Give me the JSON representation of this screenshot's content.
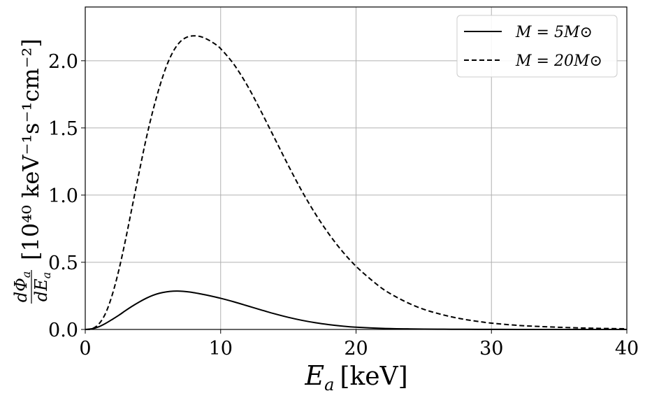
{
  "chart_data": {
    "type": "line",
    "xlabel_var": "E",
    "xlabel_sub": "a",
    "xlabel_unit": "[keV]",
    "ylabel_num": "dΦ",
    "ylabel_num_sub": "a",
    "ylabel_den": "dE",
    "ylabel_den_sub": "a",
    "ylabel_unit": "[10⁴⁰ keV⁻¹s⁻¹cm⁻²]",
    "xlim": [
      0,
      40
    ],
    "ylim": [
      0,
      2.4
    ],
    "xticks": [
      0,
      10,
      20,
      30,
      40
    ],
    "xtick_labels": [
      "0",
      "10",
      "20",
      "30",
      "40"
    ],
    "yticks": [
      0,
      0.5,
      1.0,
      1.5,
      2.0
    ],
    "ytick_labels": [
      "0.0",
      "0.5",
      "1.0",
      "1.5",
      "2.0"
    ],
    "grid": true,
    "legend_position": "top-right",
    "series": [
      {
        "name": "M = 5M⊙",
        "style": "solid",
        "color": "#000000",
        "x": [
          0,
          0.5,
          1,
          1.5,
          2,
          2.5,
          3,
          3.5,
          4,
          4.5,
          5,
          5.5,
          6,
          6.5,
          7,
          7.5,
          8,
          8.5,
          9,
          10,
          11,
          12,
          13,
          14,
          15,
          16,
          17,
          18,
          19,
          20,
          22,
          24,
          26,
          28,
          30,
          32,
          35,
          40
        ],
        "y": [
          0,
          0.005,
          0.02,
          0.045,
          0.075,
          0.107,
          0.142,
          0.175,
          0.205,
          0.232,
          0.254,
          0.27,
          0.28,
          0.285,
          0.285,
          0.281,
          0.274,
          0.265,
          0.255,
          0.232,
          0.205,
          0.175,
          0.145,
          0.116,
          0.09,
          0.068,
          0.05,
          0.036,
          0.025,
          0.017,
          0.008,
          0.004,
          0.002,
          0.001,
          0.0005,
          0.0003,
          0.0001,
          0
        ]
      },
      {
        "name": "M = 20M⊙",
        "style": "dashed",
        "color": "#000000",
        "x": [
          0,
          0.5,
          1,
          1.5,
          2,
          2.5,
          3,
          3.5,
          4,
          4.5,
          5,
          5.5,
          6,
          6.5,
          7,
          7.5,
          8,
          8.5,
          9,
          9.5,
          10,
          11,
          12,
          13,
          14,
          15,
          16,
          17,
          18,
          19,
          20,
          21,
          22,
          23,
          24,
          25,
          26,
          27,
          28,
          29,
          30,
          32,
          34,
          36,
          38,
          40
        ],
        "y": [
          0,
          0.005,
          0.04,
          0.12,
          0.26,
          0.45,
          0.68,
          0.93,
          1.18,
          1.42,
          1.63,
          1.81,
          1.96,
          2.07,
          2.14,
          2.175,
          2.185,
          2.18,
          2.16,
          2.13,
          2.09,
          1.97,
          1.81,
          1.62,
          1.42,
          1.22,
          1.03,
          0.86,
          0.71,
          0.58,
          0.47,
          0.38,
          0.3,
          0.24,
          0.19,
          0.15,
          0.12,
          0.095,
          0.075,
          0.06,
          0.047,
          0.03,
          0.02,
          0.013,
          0.008,
          0.005
        ]
      }
    ]
  }
}
